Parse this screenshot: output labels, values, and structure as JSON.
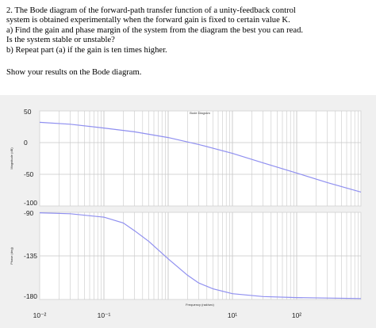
{
  "question": {
    "lines": [
      "2.  The Bode diagram of the forward-path transfer function of a unity-feedback control",
      "system is obtained experimentally when the forward gain is fixed to certain value K.",
      "a) Find the gain and phase margin of the system from the diagram the best you can read.",
      "Is the system stable or unstable?",
      "b) Repeat part (a) if the gain is ten times higher."
    ],
    "show": "Show your results on the Bode diagram."
  },
  "colors": {
    "curve": "#8f8ff0",
    "grid": "#c8c8c8",
    "panel": "#f0f0f0",
    "frame": "#d9d9d9"
  },
  "chart_data": [
    {
      "type": "line",
      "title": "Bode Diagram",
      "xlabel": "Frequency (rad/sec)",
      "ylabel": "Magnitude (dB)",
      "xscale": "log",
      "xlim": [
        0.01,
        1000
      ],
      "ylim": [
        -100,
        50
      ],
      "ytick_labels": [
        "50",
        "0",
        "-50",
        "-100"
      ],
      "series": [
        {
          "x": [
            0.01,
            0.03,
            0.1,
            0.3,
            1,
            3,
            10,
            30,
            100,
            300,
            1000
          ],
          "values": [
            32,
            29,
            23,
            17,
            8,
            -3,
            -17,
            -32,
            -48,
            -63,
            -78
          ]
        }
      ],
      "grid": true
    },
    {
      "type": "line",
      "xlabel": "Frequency (rad/sec)",
      "ylabel": "Phase (deg)",
      "xscale": "log",
      "xlim": [
        0.01,
        1000
      ],
      "ylim": [
        -180,
        -90
      ],
      "ytick_labels": [
        "-90",
        "-135",
        "-180"
      ],
      "xtick_labels": [
        "10⁻²",
        "10⁻¹",
        "10¹",
        "10²"
      ],
      "series": [
        {
          "x": [
            0.01,
            0.03,
            0.1,
            0.2,
            0.3,
            0.5,
            1,
            2,
            3,
            5,
            10,
            30,
            100,
            1000
          ],
          "values": [
            -90.5,
            -91.5,
            -95,
            -101,
            -109,
            -120,
            -138,
            -155,
            -163,
            -169,
            -174,
            -177,
            -178,
            -179
          ]
        }
      ],
      "grid": true
    }
  ]
}
